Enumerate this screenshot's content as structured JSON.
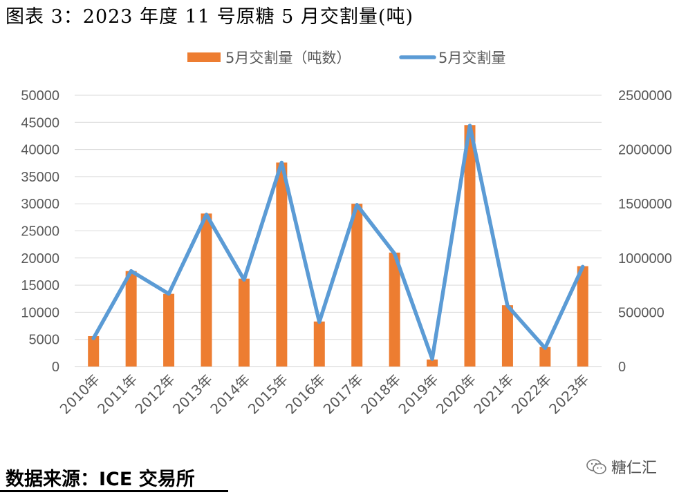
{
  "figure": {
    "title": "图表 3：2023 年度 11 号原糖 5 月交割量(吨)",
    "source": "数据来源：ICE 交易所",
    "watermark": "糖仁汇"
  },
  "colors": {
    "bar": "#ED7D31",
    "line": "#5B9BD5",
    "grid": "#D9D9D9",
    "axis_text": "#595959"
  },
  "chart_data": {
    "type": "bar+line",
    "categories": [
      "2010年",
      "2011年",
      "2012年",
      "2013年",
      "2014年",
      "2015年",
      "2016年",
      "2017年",
      "2018年",
      "2019年",
      "2020年",
      "2021年",
      "2022年",
      "2023年"
    ],
    "series": [
      {
        "name": "5月交割量（吨数）",
        "type": "bar",
        "axis": "left",
        "values": [
          5600,
          17600,
          13400,
          28200,
          16200,
          37600,
          8300,
          30000,
          21000,
          1300,
          44500,
          11300,
          3600,
          18500
        ]
      },
      {
        "name": "5月交割量",
        "type": "line",
        "axis": "right",
        "values": [
          260000,
          880000,
          670000,
          1400000,
          800000,
          1880000,
          410000,
          1490000,
          1040000,
          70000,
          2220000,
          560000,
          170000,
          920000
        ]
      }
    ],
    "y_left": {
      "min": 0,
      "max": 50000,
      "ticks": [
        0,
        5000,
        10000,
        15000,
        20000,
        25000,
        30000,
        35000,
        40000,
        45000,
        50000
      ]
    },
    "y_right": {
      "min": 0,
      "max": 2500000,
      "ticks": [
        0,
        500000,
        1000000,
        1500000,
        2000000,
        2500000
      ]
    },
    "grid": true,
    "legend_position": "top-center"
  }
}
